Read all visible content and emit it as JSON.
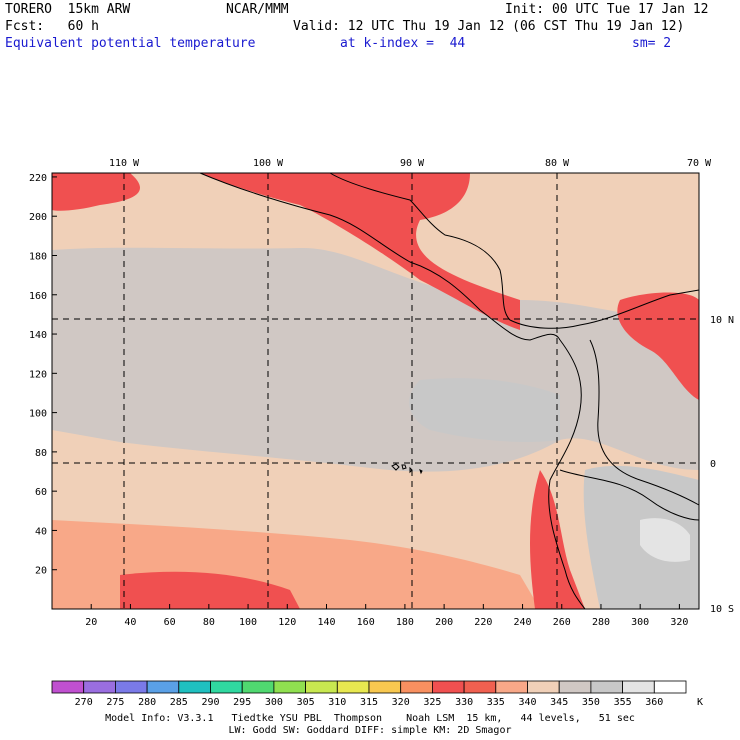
{
  "header": {
    "model": "TORERO  15km ARW",
    "center": "NCAR/MMM",
    "init": "Init: 00 UTC Tue 17 Jan 12",
    "fcst": "Fcst:   60 h",
    "valid": "Valid: 12 UTC Thu 19 Jan 12 (06 CST Thu 19 Jan 12)",
    "field": "Equivalent potential temperature",
    "level": "at k-index =  44",
    "smooth": "sm= 2"
  },
  "axes": {
    "lon_labels": [
      "110 W",
      "100 W",
      "90 W",
      "80 W",
      "70 W"
    ],
    "lat_labels": [
      "10 N",
      "0",
      "10 S"
    ],
    "x_ticks": [
      "20",
      "40",
      "60",
      "80",
      "100",
      "120",
      "140",
      "160",
      "180",
      "200",
      "220",
      "240",
      "260",
      "280",
      "300",
      "320"
    ],
    "y_ticks": [
      "220",
      "200",
      "180",
      "160",
      "140",
      "120",
      "100",
      "80",
      "60",
      "40",
      "20"
    ]
  },
  "colorbar": {
    "unit": "K",
    "levels": [
      "270",
      "275",
      "280",
      "285",
      "290",
      "295",
      "300",
      "305",
      "310",
      "315",
      "320",
      "325",
      "330",
      "335",
      "340",
      "345",
      "350",
      "355",
      "360"
    ],
    "colors": [
      "#c050d0",
      "#9a6ee0",
      "#7a7ae8",
      "#5aa0e6",
      "#20c0c0",
      "#30d8a0",
      "#50d870",
      "#90e050",
      "#c8e850",
      "#e8e850",
      "#f8c850",
      "#f89060",
      "#f05050",
      "#f06050",
      "#f8a888",
      "#f0d0b8",
      "#d0c8c4",
      "#c8c8c8",
      "#e4e4e4",
      "#ffffff"
    ]
  },
  "footer": {
    "line1": "Model Info: V3.3.1   Tiedtke YSU PBL  Thompson    Noah LSM  15 km,   44 levels,   51 sec",
    "line2": "LW: Godd SW: Goddard DIFF: simple KM: 2D Smagor"
  }
}
